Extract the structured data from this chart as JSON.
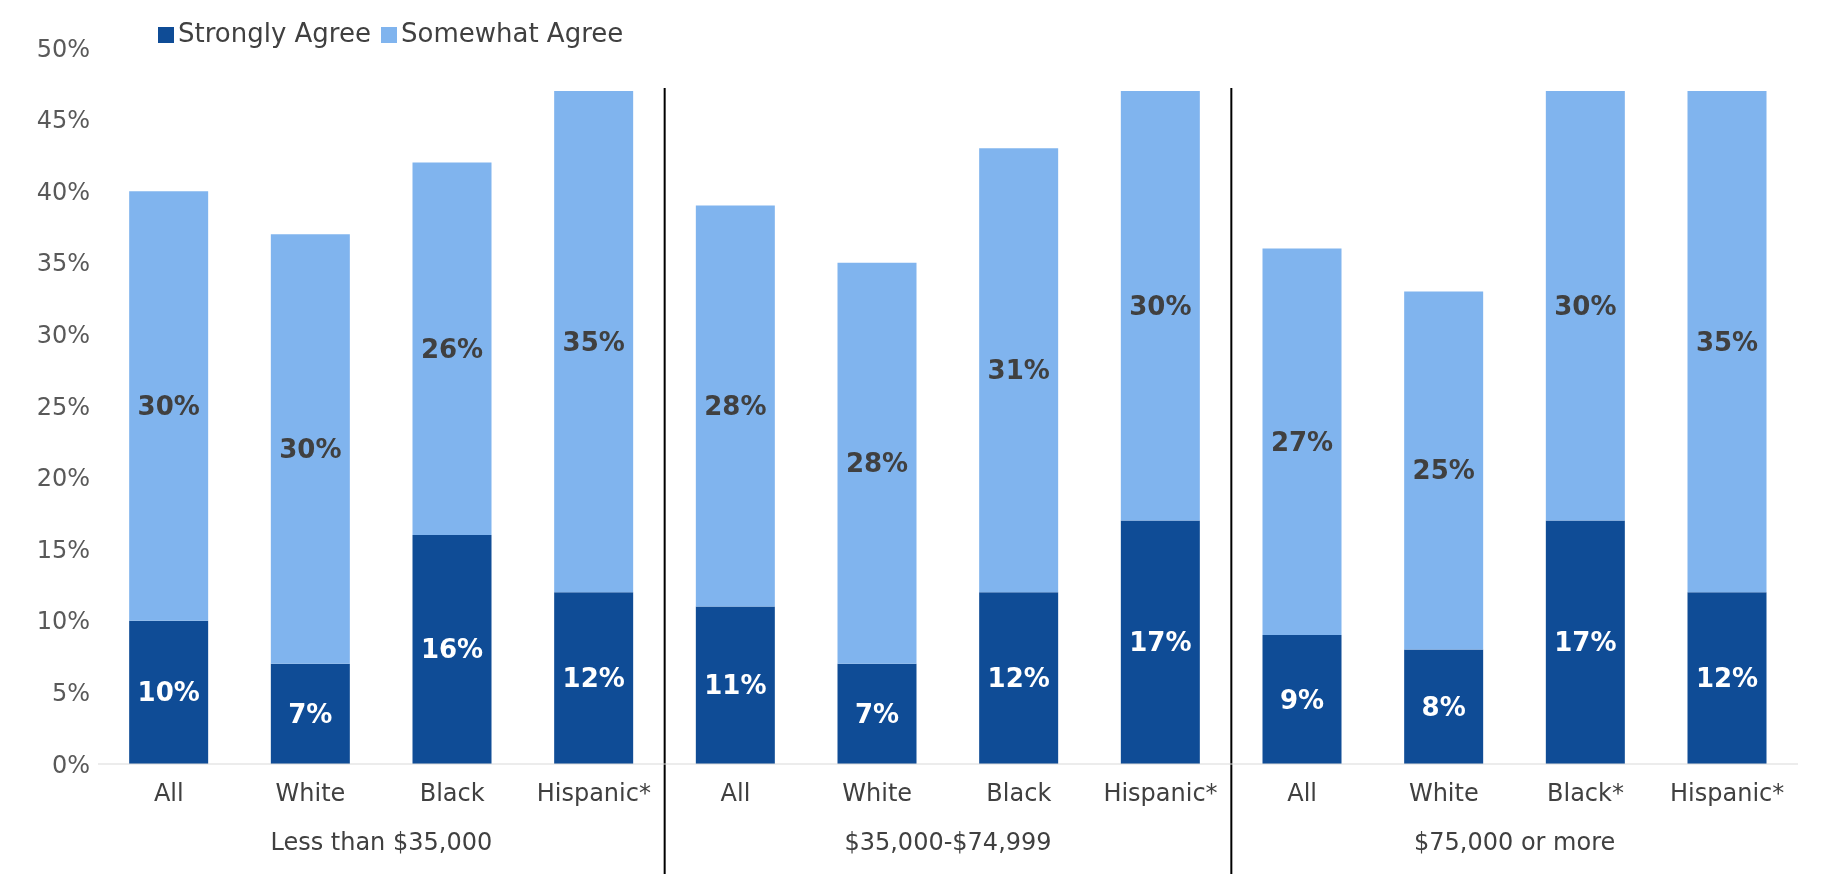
{
  "chart_data": {
    "type": "bar",
    "stacked": true,
    "categories": [
      "All",
      "White",
      "Black",
      "Hispanic*",
      "All",
      "White",
      "Black",
      "Hispanic*",
      "All",
      "White",
      "Black*",
      "Hispanic*"
    ],
    "series": [
      {
        "name": "Strongly Agree",
        "color": "#0f4c96",
        "values": [
          10,
          7,
          16,
          12,
          11,
          7,
          12,
          17,
          9,
          8,
          17,
          12
        ],
        "value_labels": [
          "10%",
          "7%",
          "16%",
          "12%",
          "11%",
          "7%",
          "12%",
          "17%",
          "9%",
          "8%",
          "17%",
          "12%"
        ]
      },
      {
        "name": "Somewhat Agree",
        "color": "#80b4ee",
        "values": [
          30,
          30,
          26,
          35,
          28,
          28,
          31,
          30,
          27,
          25,
          30,
          35
        ],
        "value_labels": [
          "30%",
          "30%",
          "26%",
          "35%",
          "28%",
          "28%",
          "31%",
          "30%",
          "27%",
          "25%",
          "30%",
          "35%"
        ]
      }
    ],
    "ylim": [
      0,
      50
    ],
    "yticks": [
      {
        "value": 0,
        "label": "0%"
      },
      {
        "value": 5,
        "label": "5%"
      },
      {
        "value": 10,
        "label": "10%"
      },
      {
        "value": 15,
        "label": "15%"
      },
      {
        "value": 20,
        "label": "20%"
      },
      {
        "value": 25,
        "label": "25%"
      },
      {
        "value": 30,
        "label": "30%"
      },
      {
        "value": 35,
        "label": "35%"
      },
      {
        "value": 40,
        "label": "40%"
      },
      {
        "value": 45,
        "label": "45%"
      },
      {
        "value": 50,
        "label": "50%"
      }
    ],
    "annotations": [
      "Less than $35,000",
      "$35,000-$74,999",
      "$75,000 or more"
    ],
    "legend": "top left",
    "grid": false
  }
}
